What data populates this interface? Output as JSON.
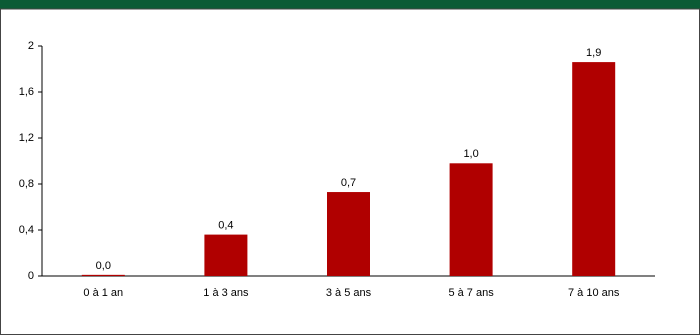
{
  "chart_data": {
    "type": "bar",
    "categories": [
      "0 à 1 an",
      "1 à 3 ans",
      "3 à 5 ans",
      "5 à 7 ans",
      "7 à 10 ans"
    ],
    "values": [
      0.01,
      0.36,
      0.73,
      0.98,
      1.86
    ],
    "value_labels": [
      "0,0",
      "0,4",
      "0,7",
      "1,0",
      "1,9"
    ],
    "color": "#b00000",
    "ylim": [
      0,
      2
    ],
    "yticks": [
      0,
      {
        "value": 0.4,
        "label": "0,4"
      },
      {
        "value": 0.8,
        "label": "0,8"
      },
      {
        "value": 1.2,
        "label": "1,2"
      },
      {
        "value": 1.6,
        "label": "1,6"
      },
      2
    ]
  }
}
